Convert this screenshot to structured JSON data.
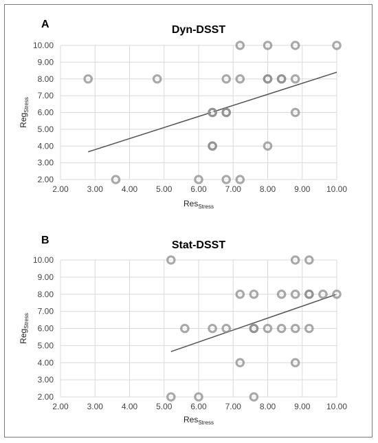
{
  "panels": [
    {
      "letter": "A",
      "chart_data": {
        "type": "scatter",
        "title": "Dyn-DSST",
        "xlabel": "Res",
        "xlabel_sub": "Stress",
        "ylabel": "Reg",
        "ylabel_sub": "Stress",
        "xlim": [
          2.0,
          10.0
        ],
        "ylim": [
          2.0,
          10.0
        ],
        "x_ticks": [
          "2.00",
          "3.00",
          "4.00",
          "5.00",
          "6.00",
          "7.00",
          "8.00",
          "9.00",
          "10.00"
        ],
        "y_ticks": [
          "2.00",
          "3.00",
          "4.00",
          "5.00",
          "6.00",
          "7.00",
          "8.00",
          "9.00",
          "10.00"
        ],
        "grid": true,
        "points": [
          [
            2.8,
            8
          ],
          [
            4.8,
            8
          ],
          [
            6.8,
            8
          ],
          [
            7.2,
            8
          ],
          [
            8.0,
            8
          ],
          [
            8.0,
            8
          ],
          [
            8.4,
            8
          ],
          [
            8.4,
            8
          ],
          [
            8.8,
            8
          ],
          [
            7.2,
            10
          ],
          [
            8.0,
            10
          ],
          [
            8.8,
            10
          ],
          [
            10.0,
            10
          ],
          [
            6.4,
            6
          ],
          [
            6.4,
            6
          ],
          [
            6.8,
            6
          ],
          [
            6.8,
            6
          ],
          [
            8.8,
            6
          ],
          [
            6.4,
            4
          ],
          [
            6.4,
            4
          ],
          [
            8.0,
            4
          ],
          [
            3.6,
            2
          ],
          [
            6.0,
            2
          ],
          [
            6.8,
            2
          ],
          [
            7.2,
            2
          ]
        ],
        "trendline": {
          "x": [
            2.8,
            10.0
          ],
          "y": [
            3.65,
            8.4
          ]
        }
      }
    },
    {
      "letter": "B",
      "chart_data": {
        "type": "scatter",
        "title": "Stat-DSST",
        "xlabel": "Res",
        "xlabel_sub": "Stress",
        "ylabel": "Reg",
        "ylabel_sub": "Stress",
        "xlim": [
          2.0,
          10.0
        ],
        "ylim": [
          2.0,
          10.0
        ],
        "x_ticks": [
          "2.00",
          "3.00",
          "4.00",
          "5.00",
          "6.00",
          "7.00",
          "8.00",
          "9.00",
          "10.00"
        ],
        "y_ticks": [
          "2.00",
          "3.00",
          "4.00",
          "5.00",
          "6.00",
          "7.00",
          "8.00",
          "9.00",
          "10.00"
        ],
        "grid": true,
        "points": [
          [
            5.2,
            10
          ],
          [
            8.8,
            10
          ],
          [
            9.2,
            10
          ],
          [
            7.2,
            8
          ],
          [
            7.6,
            8
          ],
          [
            8.4,
            8
          ],
          [
            8.8,
            8
          ],
          [
            9.2,
            8
          ],
          [
            9.2,
            8
          ],
          [
            9.6,
            8
          ],
          [
            10.0,
            8
          ],
          [
            5.6,
            6
          ],
          [
            6.4,
            6
          ],
          [
            6.8,
            6
          ],
          [
            7.6,
            6
          ],
          [
            7.6,
            6
          ],
          [
            8.0,
            6
          ],
          [
            8.4,
            6
          ],
          [
            8.8,
            6
          ],
          [
            9.2,
            6
          ],
          [
            7.2,
            4
          ],
          [
            8.8,
            4
          ],
          [
            5.2,
            2
          ],
          [
            6.0,
            2
          ],
          [
            7.6,
            2
          ]
        ],
        "trendline": {
          "x": [
            5.2,
            10.0
          ],
          "y": [
            4.65,
            8.0
          ]
        }
      }
    }
  ]
}
